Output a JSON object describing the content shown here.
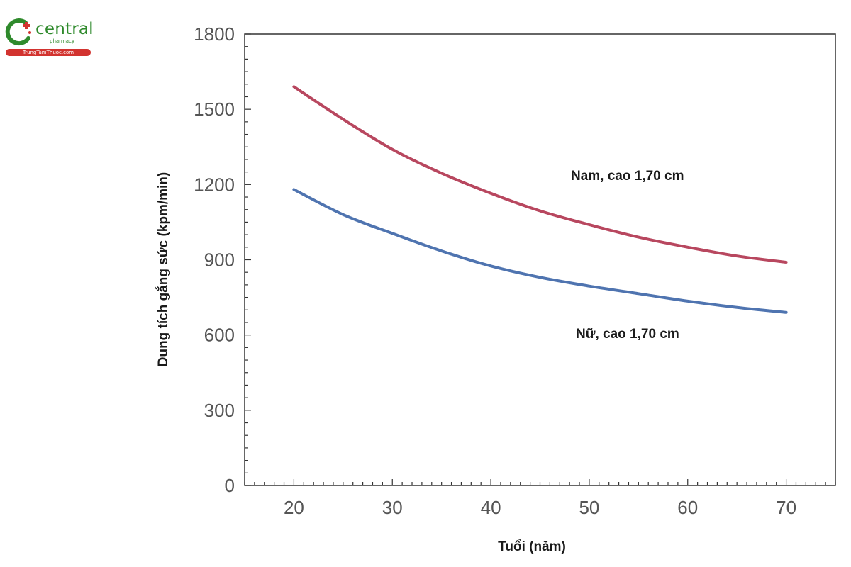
{
  "brand": {
    "name": "central",
    "subname": "pharmacy",
    "site": "TrungTamThuoc.com",
    "colors": {
      "green": "#2f8a2c",
      "red": "#d2332f"
    }
  },
  "chart_data": {
    "type": "line",
    "title": "",
    "xlabel": "Tuổi (năm)",
    "ylabel": "Dung tích gắng sức (kpm/min)",
    "xlim": [
      15,
      75
    ],
    "ylim": [
      0,
      1800
    ],
    "xticks": [
      20,
      30,
      40,
      50,
      60,
      70
    ],
    "yticks": [
      0,
      300,
      600,
      900,
      1200,
      1500,
      1800
    ],
    "grid": false,
    "x": [
      20,
      25,
      30,
      35,
      40,
      45,
      50,
      55,
      60,
      65,
      70
    ],
    "series": [
      {
        "name": "Nam, cao 1,70 cm",
        "color": "#b8475f",
        "values": [
          1590,
          1460,
          1340,
          1245,
          1165,
          1095,
          1040,
          990,
          950,
          915,
          890
        ]
      },
      {
        "name": "Nữ, cao 1,70 cm",
        "color": "#4f74b0",
        "values": [
          1180,
          1080,
          1005,
          935,
          875,
          830,
          795,
          765,
          735,
          710,
          690
        ]
      }
    ]
  }
}
